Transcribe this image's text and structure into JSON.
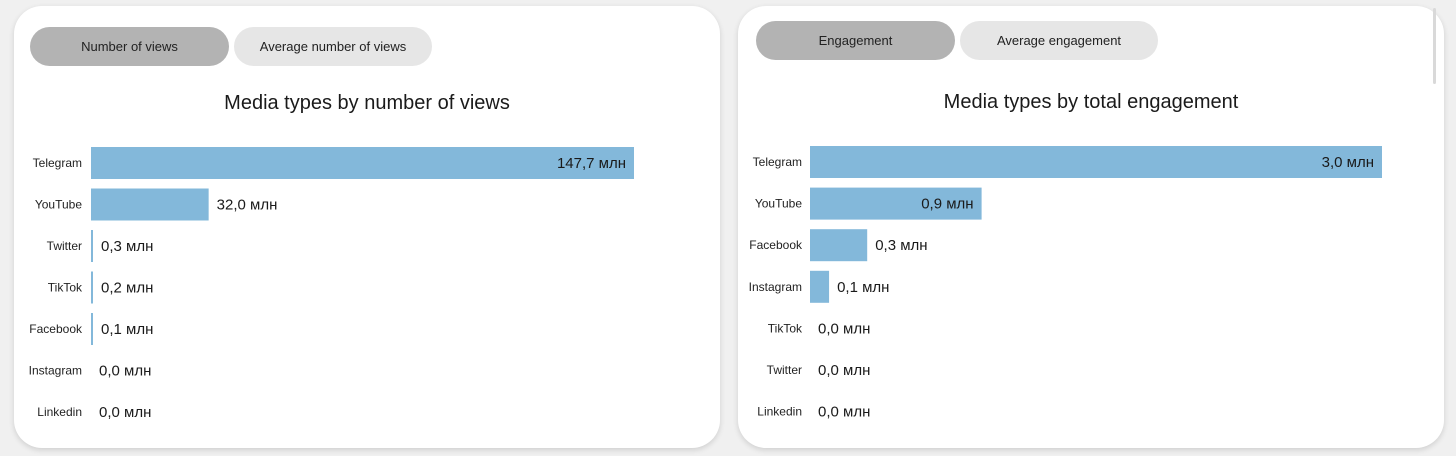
{
  "panels": [
    {
      "tabs": [
        {
          "label": "Number of views",
          "active": true
        },
        {
          "label": "Average number of views",
          "active": false
        }
      ],
      "title": "Media types by number of views"
    },
    {
      "tabs": [
        {
          "label": "Engagement",
          "active": true
        },
        {
          "label": "Average engagement",
          "active": false
        }
      ],
      "title": "Media types by total engagement"
    }
  ],
  "colors": {
    "bar": "#83b8da",
    "tab_active": "#b3b3b3",
    "tab_inactive": "#e6e6e6"
  },
  "chart_data": [
    {
      "type": "bar",
      "orientation": "horizontal",
      "title": "Media types by number of views",
      "categories": [
        "Telegram",
        "YouTube",
        "Twitter",
        "TikTok",
        "Facebook",
        "Instagram",
        "Linkedin"
      ],
      "values": [
        147.7,
        32.0,
        0.3,
        0.2,
        0.1,
        0.0,
        0.0
      ],
      "labels": [
        "147,7 млн",
        "32,0 млн",
        "0,3 млн",
        "0,2 млн",
        "0,1 млн",
        "0,0 млн",
        "0,0 млн"
      ],
      "xlim": [
        0,
        147.7
      ]
    },
    {
      "type": "bar",
      "orientation": "horizontal",
      "title": "Media types by total engagement",
      "categories": [
        "Telegram",
        "YouTube",
        "Facebook",
        "Instagram",
        "TikTok",
        "Twitter",
        "Linkedin"
      ],
      "values": [
        3.0,
        0.9,
        0.3,
        0.1,
        0.0,
        0.0,
        0.0
      ],
      "labels": [
        "3,0 млн",
        "0,9 млн",
        "0,3 млн",
        "0,1 млн",
        "0,0 млн",
        "0,0 млн",
        "0,0 млн"
      ],
      "xlim": [
        0,
        3.0
      ]
    }
  ]
}
